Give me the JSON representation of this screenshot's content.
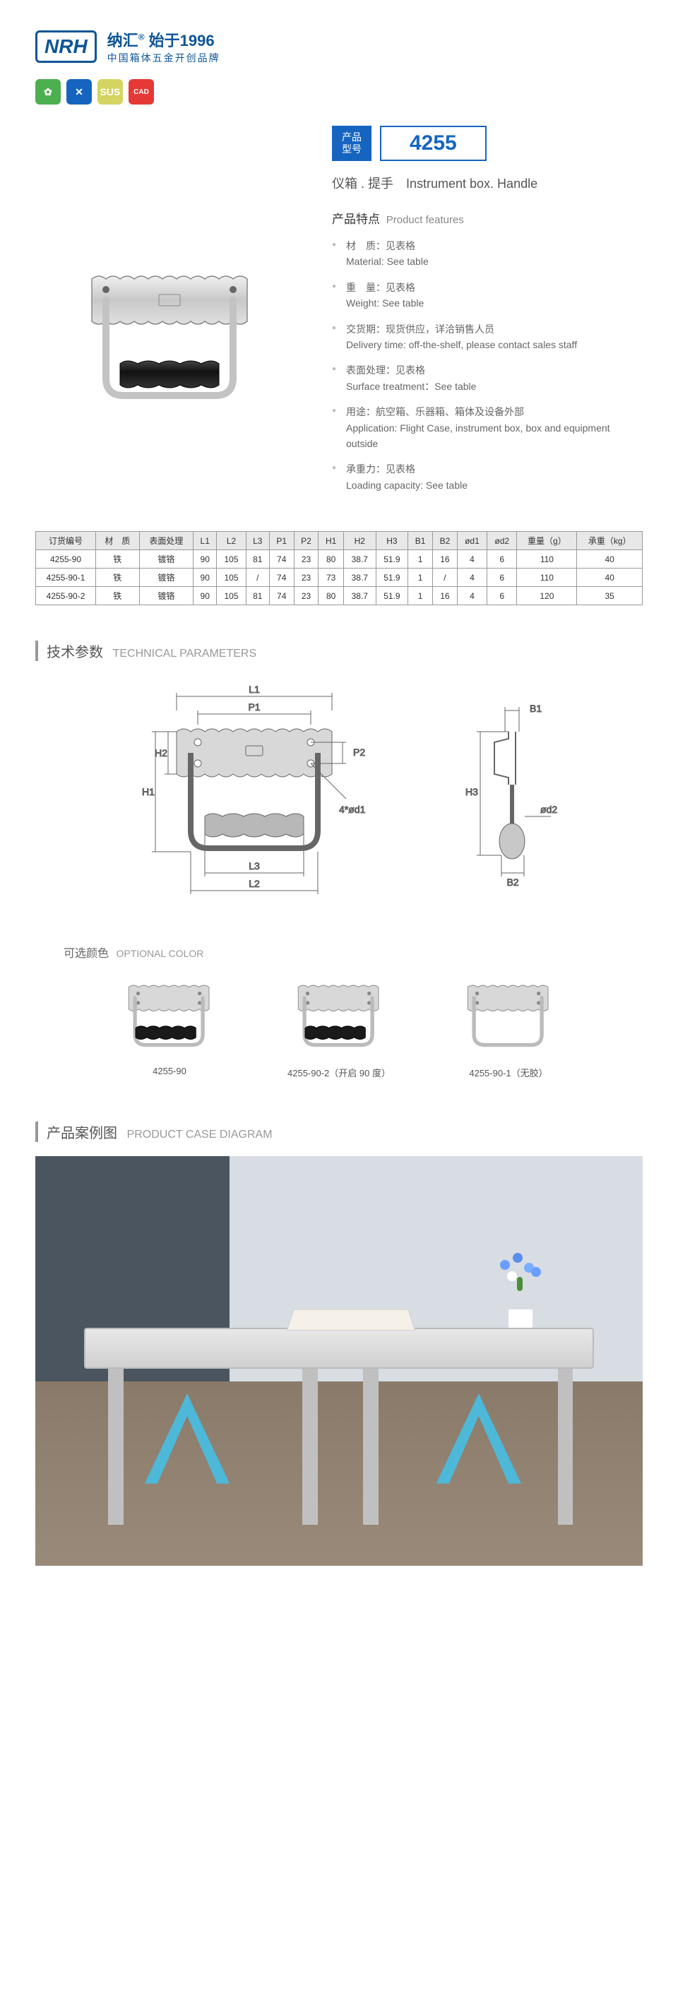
{
  "header": {
    "logo": "NRH",
    "brand_cn": "纳汇",
    "since_text": "始于1996",
    "sub": "中国箱体五金开创品牌"
  },
  "badges": {
    "green": "✿",
    "blue": "✕",
    "yellow": "SUS",
    "red": "CAD"
  },
  "model": {
    "label_l1": "产品",
    "label_l2": "型号",
    "number": "4255"
  },
  "category": "仪箱 . 提手　Instrument box. Handle",
  "features_title_cn": "产品特点",
  "features_title_en": "Product features",
  "features": [
    {
      "cn": "材　质：见表格",
      "en": "Material: See table"
    },
    {
      "cn": "重　量：见表格",
      "en": "Weight: See table"
    },
    {
      "cn": "交货期：现货供应，详洽销售人员",
      "en": "Delivery time: off-the-shelf, please contact sales staff"
    },
    {
      "cn": "表面处理：见表格",
      "en": "Surface treatment：See table"
    },
    {
      "cn": "用途：航空箱、乐器箱、箱体及设备外部",
      "en": "Application: Flight Case, instrument box, box and equipment outside"
    },
    {
      "cn": "承重力：见表格",
      "en": "Loading capacity: See table"
    }
  ],
  "spec_table": {
    "headers": [
      "订货编号",
      "材　质",
      "表面处理",
      "L1",
      "L2",
      "L3",
      "P1",
      "P2",
      "H1",
      "H2",
      "H3",
      "B1",
      "B2",
      "ød1",
      "ød2",
      "重量（g）",
      "承重（kg）"
    ],
    "rows": [
      [
        "4255-90",
        "铁",
        "镀铬",
        "90",
        "105",
        "81",
        "74",
        "23",
        "80",
        "38.7",
        "51.9",
        "1",
        "16",
        "4",
        "6",
        "110",
        "40"
      ],
      [
        "4255-90-1",
        "铁",
        "镀铬",
        "90",
        "105",
        "/",
        "74",
        "23",
        "73",
        "38.7",
        "51.9",
        "1",
        "/",
        "4",
        "6",
        "110",
        "40"
      ],
      [
        "4255-90-2",
        "铁",
        "镀铬",
        "90",
        "105",
        "81",
        "74",
        "23",
        "80",
        "38.7",
        "51.9",
        "1",
        "16",
        "4",
        "6",
        "120",
        "35"
      ]
    ]
  },
  "tech_title_cn": "技术参数",
  "tech_title_en": "TECHNICAL PARAMETERS",
  "dims": {
    "L1": "L1",
    "L2": "L2",
    "L3": "L3",
    "P1": "P1",
    "P2": "P2",
    "H1": "H1",
    "H2": "H2",
    "H3": "H3",
    "B1": "B1",
    "B2": "B2",
    "od1": "4*ød1",
    "od2": "ød2"
  },
  "optional_title_cn": "可选颜色",
  "optional_title_en": "OPTIONAL COLOR",
  "color_options": [
    {
      "label": "4255-90",
      "grip": true,
      "variant": "normal"
    },
    {
      "label": "4255-90-2（开启 90 度）",
      "grip": true,
      "variant": "open90"
    },
    {
      "label": "4255-90-1（无胶）",
      "grip": false,
      "variant": "normal"
    }
  ],
  "case_title_cn": "产品案例图",
  "case_title_en": "PRODUCT CASE DIAGRAM",
  "colors": {
    "brand": "#0d5596",
    "metal_light": "#e8e8e8",
    "metal_mid": "#c8c8c8",
    "metal_dark": "#888",
    "grip": "#1a1a1a",
    "dim_line": "#666"
  }
}
